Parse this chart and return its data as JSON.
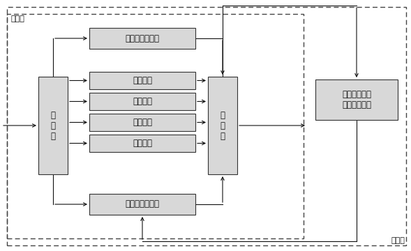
{
  "bg_color": "#ffffff",
  "box_fill": "#d8d8d8",
  "box_edge": "#333333",
  "text_color": "#111111",
  "large_loop_label": "大回路",
  "small_loop_label": "小回路",
  "splitter_left_label": "分\n流\n器",
  "splitter_right_label": "分\n流\n器",
  "power_top_label": "（上）电源冷板",
  "power_bot_label": "（下）电源冷板",
  "module_labels": [
    "模块冷板",
    "模块冷板",
    "模块冷板",
    "模块冷板"
  ],
  "digital_label": "数字处理模块\n集成液冷结构",
  "arrow_color": "#111111",
  "line_color": "#333333",
  "dash_color": "#555555"
}
